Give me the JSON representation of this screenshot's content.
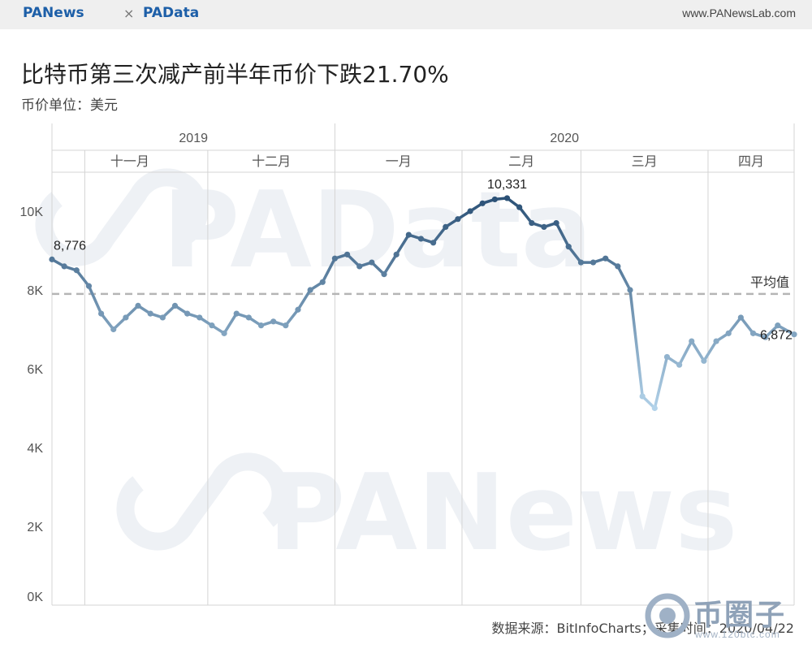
{
  "header": {
    "brand_left": "PANews",
    "separator": "×",
    "brand_right": "PAData",
    "site_url": "www.PANewsLab.com"
  },
  "watermarks": {
    "upper": "PAData",
    "lower": "PANews",
    "corner_text": "币圈子",
    "corner_url": "www.120btc.com"
  },
  "chart_data": {
    "type": "line",
    "title": "比特币第三次减产前半年币价下跌21.70%",
    "subtitle": "币价单位：美元",
    "years": [
      "2019",
      "2020"
    ],
    "months": [
      "十一月",
      "十二月",
      "一月",
      "二月",
      "三月",
      "四月"
    ],
    "x_range": [
      "2019-10-24",
      "2020-04-22"
    ],
    "ylim": [
      0,
      10800
    ],
    "yticks": [
      0,
      2000,
      4000,
      6000,
      8000,
      10000
    ],
    "ytick_labels": [
      "0K",
      "2K",
      "4K",
      "6K",
      "8K",
      "10K"
    ],
    "reference_line": {
      "label": "平均值",
      "value": 7900
    },
    "annotations": [
      {
        "label": "8,776",
        "date": "2019-10-24",
        "value": 8776
      },
      {
        "label": "10,331",
        "date": "2020-02-12",
        "value": 10331
      },
      {
        "label": "6,872",
        "date": "2020-04-22",
        "value": 6872
      }
    ],
    "color_scale": [
      "#b3d3ea",
      "#2b5176"
    ],
    "grid": "vertical month dividers",
    "source": "数据来源：BitInfoCharts；采集时间：2020/04/22",
    "series": [
      {
        "x": [
          "2019-10-24",
          "2019-10-27",
          "2019-10-30",
          "2019-11-02",
          "2019-11-05",
          "2019-11-08",
          "2019-11-11",
          "2019-11-14",
          "2019-11-17",
          "2019-11-20",
          "2019-11-23",
          "2019-11-26",
          "2019-11-29",
          "2019-12-02",
          "2019-12-05",
          "2019-12-08",
          "2019-12-11",
          "2019-12-14",
          "2019-12-17",
          "2019-12-20",
          "2019-12-23",
          "2019-12-26",
          "2019-12-29",
          "2020-01-01",
          "2020-01-04",
          "2020-01-07",
          "2020-01-10",
          "2020-01-13",
          "2020-01-16",
          "2020-01-19",
          "2020-01-22",
          "2020-01-25",
          "2020-01-28",
          "2020-01-31",
          "2020-02-03",
          "2020-02-06",
          "2020-02-09",
          "2020-02-12",
          "2020-02-15",
          "2020-02-18",
          "2020-02-21",
          "2020-02-24",
          "2020-02-27",
          "2020-03-01",
          "2020-03-04",
          "2020-03-07",
          "2020-03-10",
          "2020-03-13",
          "2020-03-16",
          "2020-03-19",
          "2020-03-22",
          "2020-03-25",
          "2020-03-28",
          "2020-03-31",
          "2020-04-03",
          "2020-04-06",
          "2020-04-09",
          "2020-04-12",
          "2020-04-15",
          "2020-04-18",
          "2020-04-22"
        ],
        "y": [
          8776,
          8600,
          8500,
          8100,
          7400,
          7000,
          7300,
          7600,
          7400,
          7300,
          7600,
          7400,
          7300,
          7100,
          6900,
          7400,
          7300,
          7100,
          7200,
          7100,
          7500,
          8000,
          8200,
          8800,
          8900,
          8600,
          8700,
          8400,
          8900,
          9400,
          9300,
          9200,
          9600,
          9800,
          10000,
          10200,
          10300,
          10331,
          10100,
          9700,
          9600,
          9700,
          9100,
          8700,
          8700,
          8800,
          8600,
          8000,
          5300,
          5000,
          6300,
          6100,
          6700,
          6200,
          6700,
          6900,
          7300,
          6900,
          6800,
          7100,
          6872
        ]
      }
    ]
  }
}
